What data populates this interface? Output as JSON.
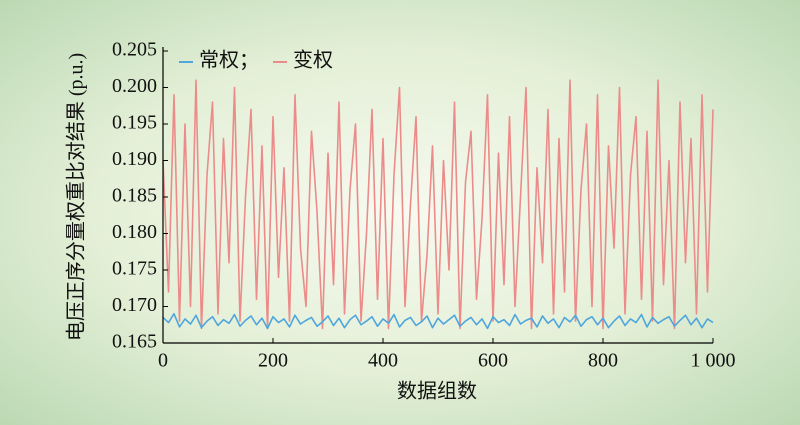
{
  "chart_data": {
    "type": "line",
    "xlabel": "数据组数",
    "ylabel": "电压正序分量权重比对结果 (p.u.)",
    "x": [
      0,
      10,
      20,
      30,
      40,
      50,
      60,
      70,
      80,
      90,
      100,
      110,
      120,
      130,
      140,
      150,
      160,
      170,
      180,
      190,
      200,
      210,
      220,
      230,
      240,
      250,
      260,
      270,
      280,
      290,
      300,
      310,
      320,
      330,
      340,
      350,
      360,
      370,
      380,
      390,
      400,
      410,
      420,
      430,
      440,
      450,
      460,
      470,
      480,
      490,
      500,
      510,
      520,
      530,
      540,
      550,
      560,
      570,
      580,
      590,
      600,
      610,
      620,
      630,
      640,
      650,
      660,
      670,
      680,
      690,
      700,
      710,
      720,
      730,
      740,
      750,
      760,
      770,
      780,
      790,
      800,
      810,
      820,
      830,
      840,
      850,
      860,
      870,
      880,
      890,
      900,
      910,
      920,
      930,
      940,
      950,
      960,
      970,
      980,
      990,
      1000
    ],
    "series": [
      {
        "name": "常权；",
        "color": "#4ea6dc",
        "values": [
          0.1685,
          0.1678,
          0.169,
          0.1672,
          0.1683,
          0.1676,
          0.1688,
          0.1671,
          0.168,
          0.1686,
          0.1674,
          0.1682,
          0.1677,
          0.1689,
          0.1673,
          0.1681,
          0.1687,
          0.1675,
          0.1684,
          0.167,
          0.1686,
          0.1678,
          0.1683,
          0.1672,
          0.1688,
          0.1676,
          0.1681,
          0.1685,
          0.1673,
          0.1679,
          0.1687,
          0.1674,
          0.1684,
          0.1671,
          0.1682,
          0.1688,
          0.1675,
          0.168,
          0.1686,
          0.1673,
          0.1683,
          0.1677,
          0.1689,
          0.1672,
          0.1681,
          0.1685,
          0.1674,
          0.1679,
          0.1687,
          0.1671,
          0.1684,
          0.1676,
          0.1682,
          0.1688,
          0.1673,
          0.168,
          0.1685,
          0.1675,
          0.1683,
          0.167,
          0.1686,
          0.1678,
          0.1682,
          0.1674,
          0.1689,
          0.1676,
          0.1681,
          0.1684,
          0.1672,
          0.1687,
          0.1677,
          0.1683,
          0.1671,
          0.1685,
          0.1679,
          0.1688,
          0.1673,
          0.1682,
          0.1686,
          0.1675,
          0.1684,
          0.1671,
          0.168,
          0.1687,
          0.1674,
          0.1683,
          0.1678,
          0.1689,
          0.1672,
          0.1685,
          0.1677,
          0.1682,
          0.1686,
          0.1673,
          0.1681,
          0.1688,
          0.1675,
          0.1684,
          0.1671,
          0.1683,
          0.1678
        ]
      },
      {
        "name": "变权",
        "color": "#ec8c8a",
        "values": [
          0.19,
          0.172,
          0.199,
          0.168,
          0.195,
          0.17,
          0.201,
          0.167,
          0.188,
          0.198,
          0.169,
          0.193,
          0.176,
          0.2,
          0.168,
          0.185,
          0.197,
          0.171,
          0.192,
          0.167,
          0.196,
          0.174,
          0.189,
          0.168,
          0.199,
          0.178,
          0.17,
          0.194,
          0.183,
          0.167,
          0.191,
          0.173,
          0.198,
          0.169,
          0.186,
          0.195,
          0.168,
          0.18,
          0.197,
          0.171,
          0.193,
          0.167,
          0.188,
          0.2,
          0.17,
          0.184,
          0.196,
          0.168,
          0.177,
          0.192,
          0.169,
          0.19,
          0.175,
          0.198,
          0.167,
          0.187,
          0.194,
          0.171,
          0.182,
          0.199,
          0.168,
          0.191,
          0.173,
          0.196,
          0.17,
          0.185,
          0.2,
          0.167,
          0.189,
          0.176,
          0.197,
          0.169,
          0.193,
          0.172,
          0.201,
          0.168,
          0.186,
          0.195,
          0.17,
          0.199,
          0.167,
          0.192,
          0.178,
          0.2,
          0.169,
          0.188,
          0.196,
          0.171,
          0.194,
          0.168,
          0.201,
          0.173,
          0.19,
          0.167,
          0.198,
          0.176,
          0.193,
          0.169,
          0.199,
          0.172,
          0.197
        ]
      }
    ],
    "xlim": [
      0,
      1000
    ],
    "xticks": [
      0,
      200,
      400,
      600,
      800,
      {
        "value": 1000,
        "label": "1 000"
      }
    ],
    "ylim": [
      0.165,
      0.205
    ],
    "yticks": [
      0.165,
      {
        "value": 0.17,
        "label": "0.170"
      },
      0.175,
      {
        "value": 0.18,
        "label": "0.180"
      },
      0.185,
      {
        "value": 0.19,
        "label": "0.190"
      },
      0.195,
      {
        "value": 0.2,
        "label": "0.200"
      },
      0.205
    ],
    "legend": "upper left",
    "grid": false
  }
}
